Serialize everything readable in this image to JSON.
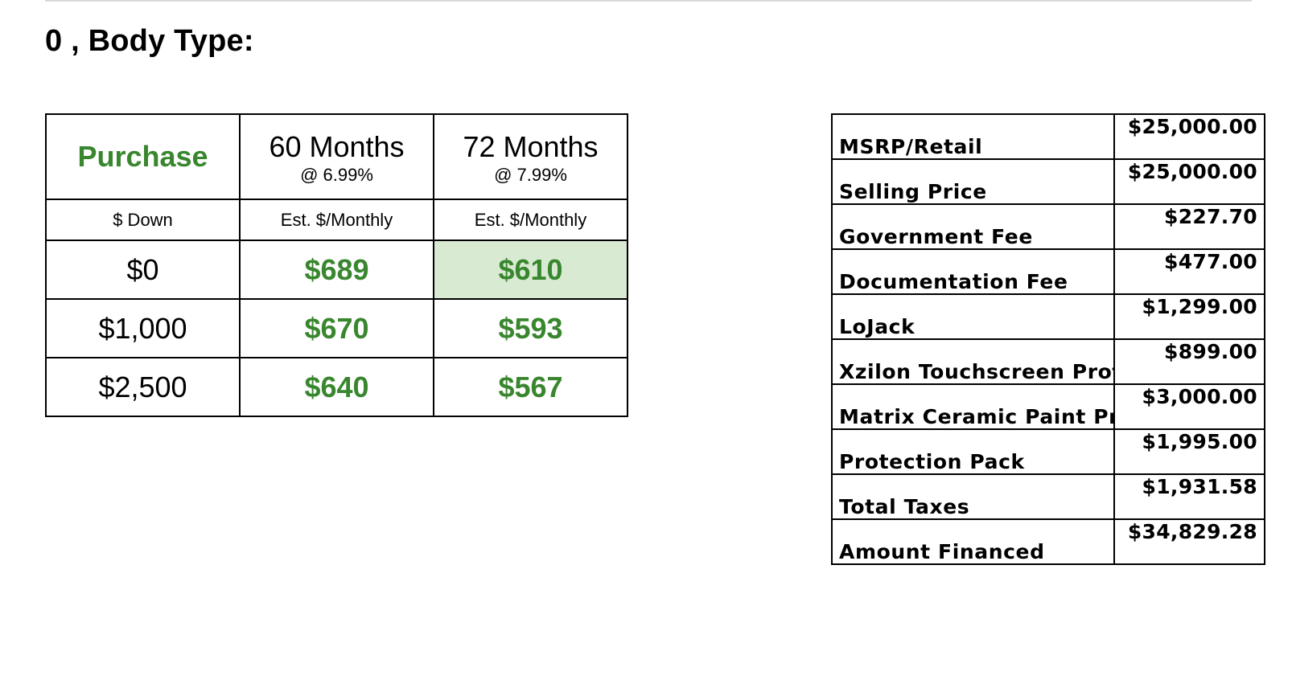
{
  "page": {
    "title": "0 , Body Type:"
  },
  "payment_table": {
    "purchase_label": "Purchase",
    "terms": [
      {
        "label": "60 Months",
        "rate": "@ 6.99%"
      },
      {
        "label": "72 Months",
        "rate": "@ 7.99%"
      }
    ],
    "subheaders": [
      "$ Down",
      "Est. $/Monthly",
      "Est. $/Monthly"
    ],
    "rows": [
      {
        "down": "$0",
        "m60": "$689",
        "m72": "$610"
      },
      {
        "down": "$1,000",
        "m60": "$670",
        "m72": "$593"
      },
      {
        "down": "$2,500",
        "m60": "$640",
        "m72": "$567"
      }
    ],
    "highlight_color": "#d9ead3",
    "accent_color": "#38862d"
  },
  "price_table": {
    "rows": [
      {
        "label": "MSRP/Retail",
        "value": "$25,000.00"
      },
      {
        "label": "Selling Price",
        "value": "$25,000.00"
      },
      {
        "label": "Government Fee",
        "value": "$227.70"
      },
      {
        "label": "Documentation Fee",
        "value": "$477.00"
      },
      {
        "label": "LoJack",
        "value": "$1,299.00"
      },
      {
        "label": "Xzilon Touchscreen Prot",
        "value": "$899.00"
      },
      {
        "label": "Matrix Ceramic Paint Pro",
        "value": "$3,000.00"
      },
      {
        "label": "Protection Pack",
        "value": "$1,995.00"
      },
      {
        "label": "Total Taxes",
        "value": "$1,931.58"
      },
      {
        "label": "Amount Financed",
        "value": "$34,829.28"
      }
    ]
  }
}
